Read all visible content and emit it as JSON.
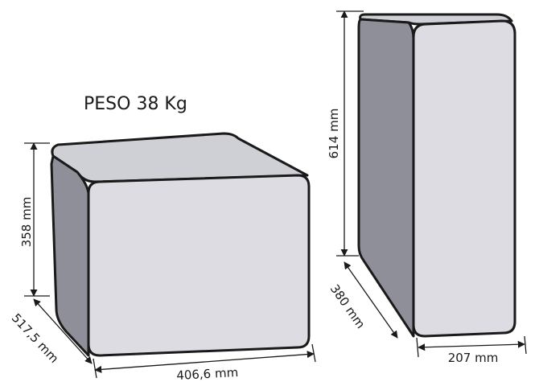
{
  "weight_label": "PESO 38 Kg",
  "box_small": {
    "height": "358 mm",
    "depth": "517,5 mm",
    "width": "406,6 mm"
  },
  "box_tall": {
    "height": "614 mm",
    "depth": "380 mm",
    "width": "207 mm"
  }
}
